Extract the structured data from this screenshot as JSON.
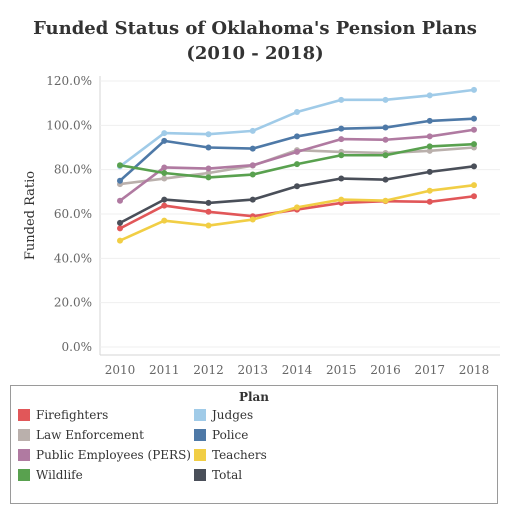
{
  "title_line1": "Funded Status of Oklahoma's Pension Plans",
  "title_line2": "(2010 - 2018)",
  "legend_title": "Plan",
  "chart_data": {
    "type": "line",
    "title": "Funded Status of Oklahoma's Pension Plans (2010 - 2018)",
    "xlabel": "",
    "ylabel": "Funded Ratio",
    "ylim": [
      0,
      120
    ],
    "y_ticks": [
      "0.0%",
      "20.0%",
      "40.0%",
      "60.0%",
      "80.0%",
      "100.0%",
      "120.0%"
    ],
    "y_tick_values": [
      0,
      20,
      40,
      60,
      80,
      100,
      120
    ],
    "categories": [
      "2010",
      "2011",
      "2012",
      "2013",
      "2014",
      "2015",
      "2016",
      "2017",
      "2018"
    ],
    "grid": true,
    "legend_position": "bottom",
    "series": [
      {
        "name": "Firefighters",
        "color": "#e15759",
        "values": [
          53.5,
          63.8,
          61.0,
          59.0,
          62.0,
          65.0,
          65.8,
          65.5,
          68.0
        ]
      },
      {
        "name": "Judges",
        "color": "#a0cbe8",
        "values": [
          81.5,
          96.5,
          96.0,
          97.5,
          106.0,
          111.5,
          111.5,
          113.5,
          116.0
        ]
      },
      {
        "name": "Law Enforcement",
        "color": "#bab0ac",
        "values": [
          73.5,
          76.0,
          78.5,
          81.8,
          88.8,
          88.0,
          87.5,
          88.5,
          90.0
        ]
      },
      {
        "name": "Police",
        "color": "#4e79a7",
        "values": [
          75.0,
          93.0,
          90.0,
          89.5,
          95.0,
          98.5,
          99.0,
          102.0,
          103.0
        ]
      },
      {
        "name": "Public Employees (PERS)",
        "color": "#b07aa1",
        "values": [
          66.0,
          81.0,
          80.5,
          82.0,
          88.0,
          93.8,
          93.5,
          95.0,
          98.0
        ]
      },
      {
        "name": "Teachers",
        "color": "#f1ce45",
        "values": [
          48.0,
          57.0,
          54.8,
          57.5,
          63.0,
          66.5,
          66.0,
          70.5,
          73.0
        ]
      },
      {
        "name": "Wildlife",
        "color": "#59a14f",
        "values": [
          82.0,
          78.5,
          76.5,
          77.8,
          82.5,
          86.5,
          86.5,
          90.5,
          91.5
        ]
      },
      {
        "name": "Total",
        "color": "#4a4f59",
        "values": [
          56.0,
          66.5,
          65.0,
          66.5,
          72.5,
          76.0,
          75.5,
          79.0,
          81.5
        ]
      }
    ]
  }
}
